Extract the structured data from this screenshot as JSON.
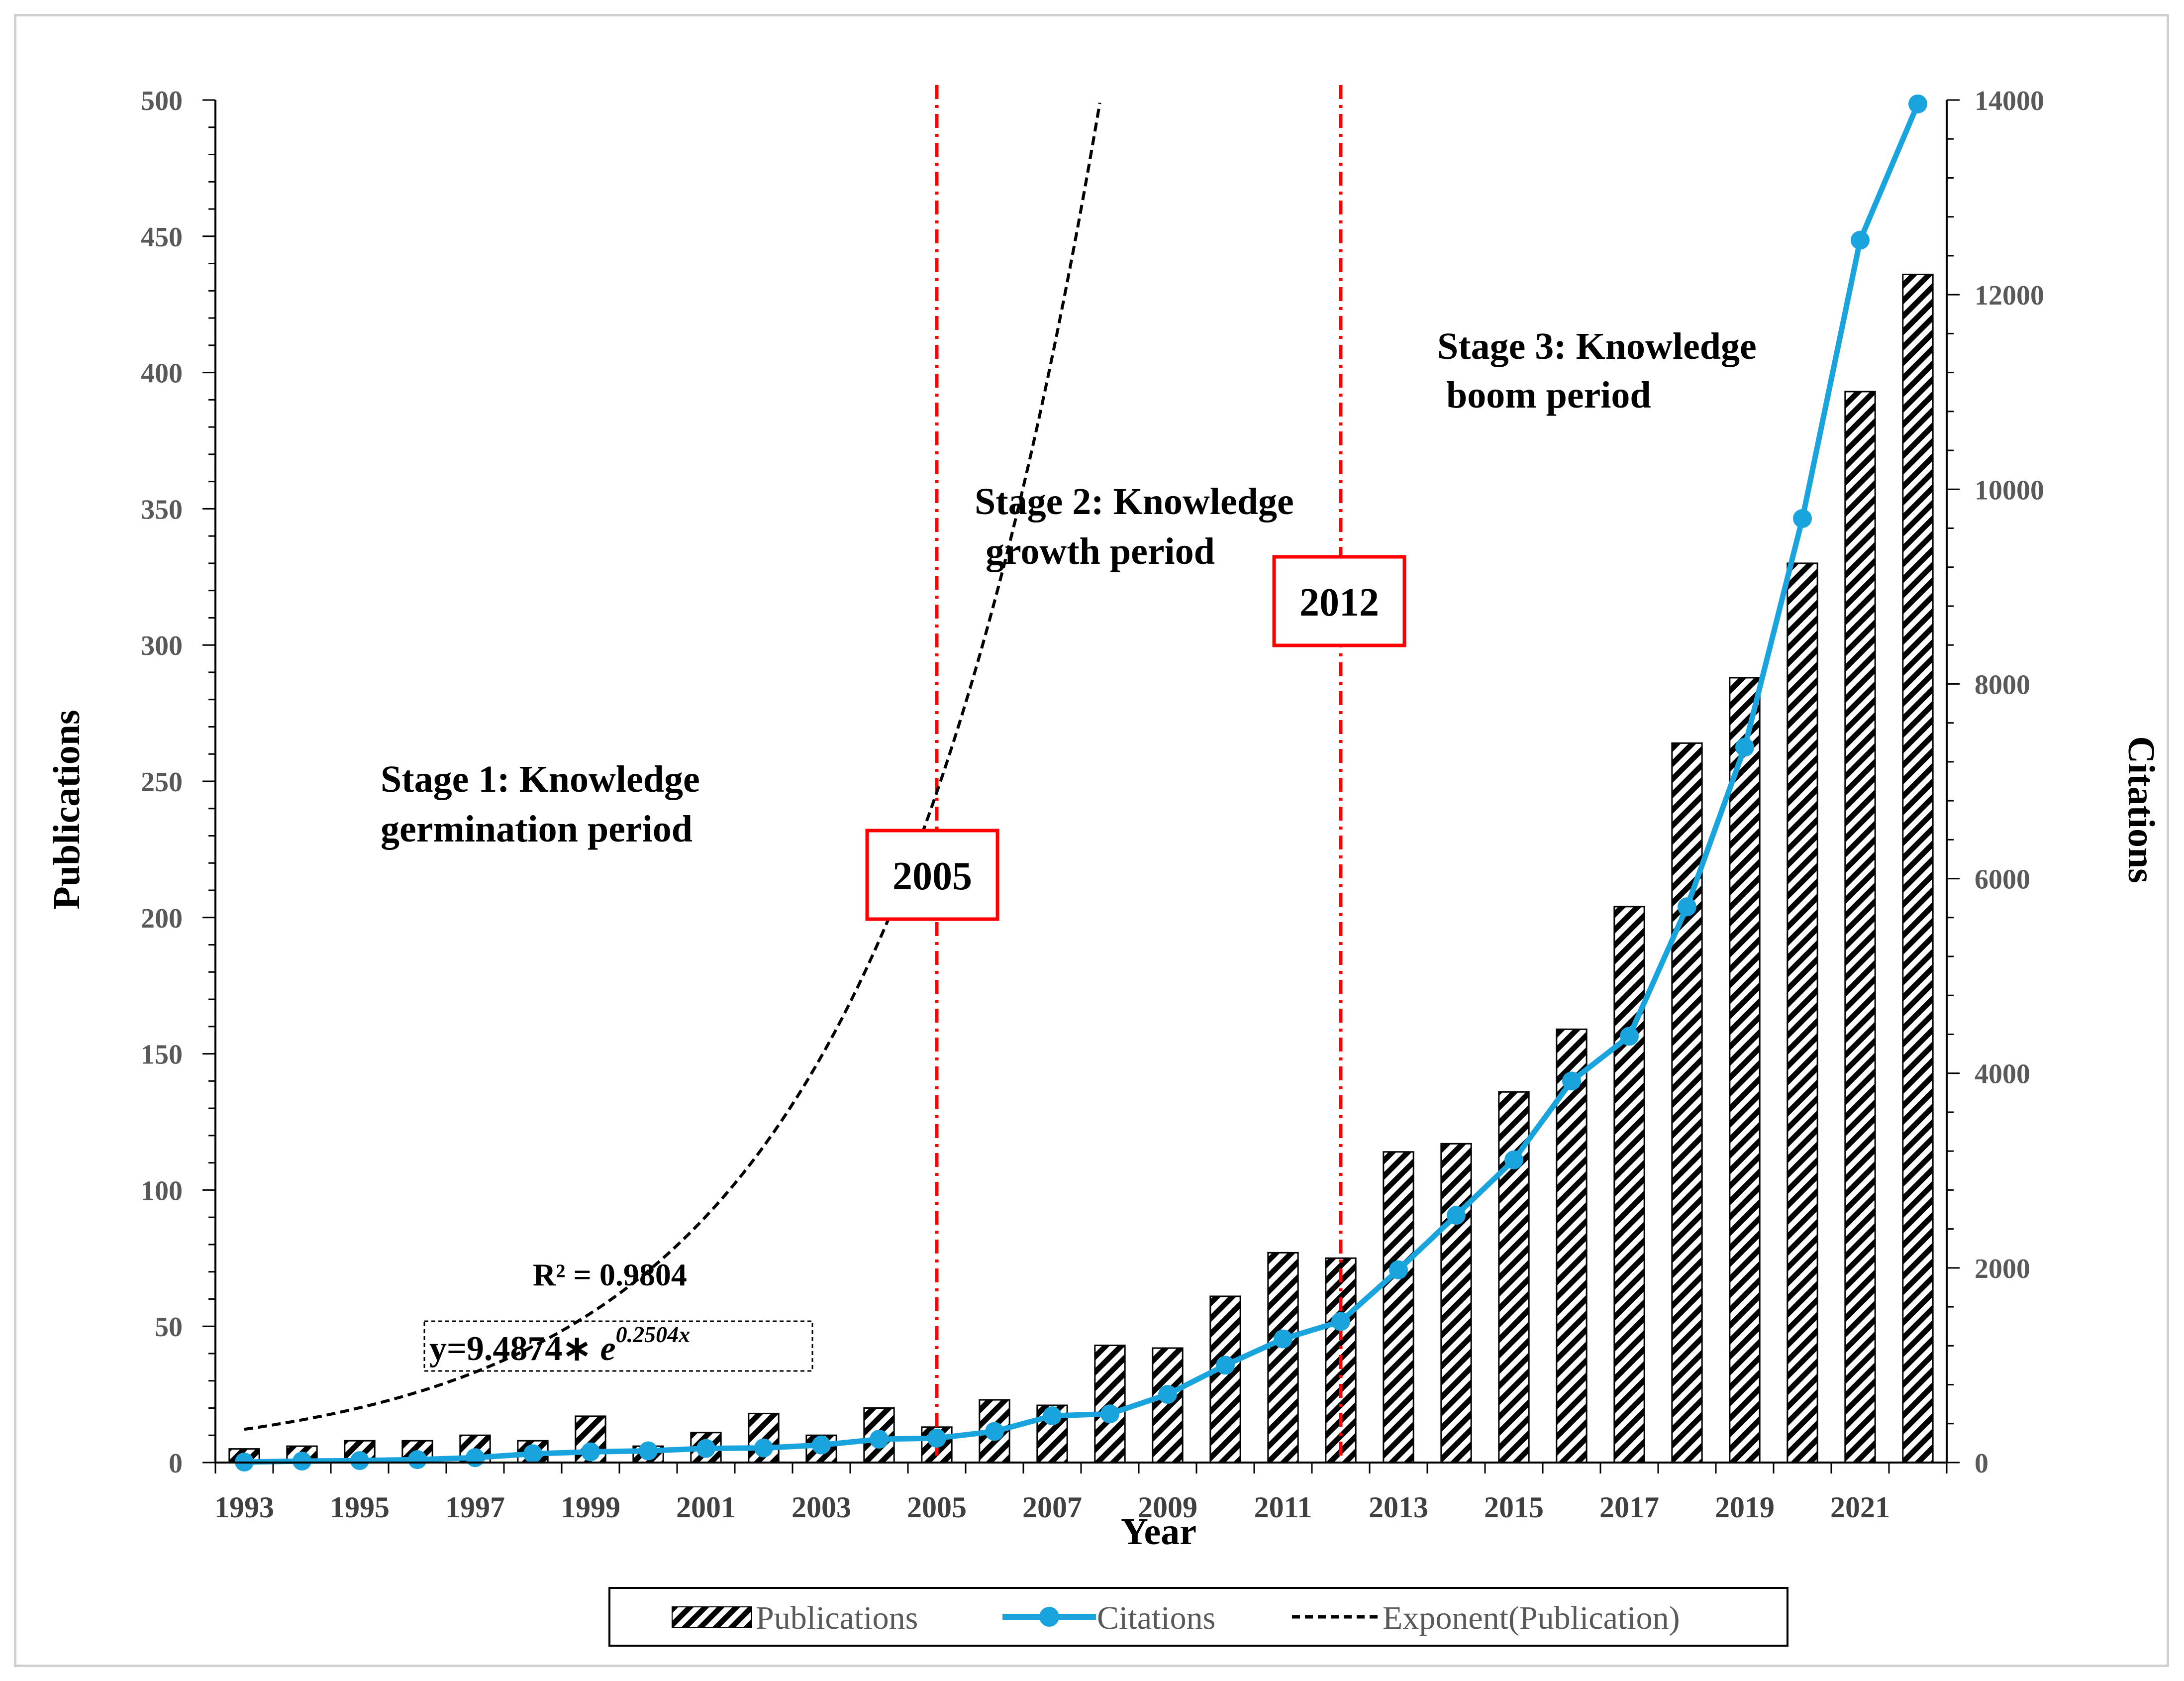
{
  "chart_data": {
    "type": "bar",
    "xlabel": "Year",
    "ylabel": "Publications",
    "y2label": "Citations",
    "ylim": [
      0,
      500
    ],
    "y2lim": [
      0,
      14000
    ],
    "y_ticks": [
      "0",
      "50",
      "100",
      "150",
      "200",
      "250",
      "300",
      "350",
      "400",
      "450",
      "500"
    ],
    "y2_ticks": [
      "0",
      "2000",
      "4000",
      "6000",
      "8000",
      "10000",
      "12000",
      "14000"
    ],
    "x_tick_labels": [
      "1993",
      "1995",
      "1997",
      "1999",
      "2001",
      "2003",
      "2005",
      "2007",
      "2009",
      "2011",
      "2013",
      "2015",
      "2017",
      "2019",
      "2021"
    ],
    "categories": [
      "1993",
      "1994",
      "1995",
      "1996",
      "1997",
      "1998",
      "1999",
      "2000",
      "2001",
      "2002",
      "2003",
      "2004",
      "2005",
      "2006",
      "2007",
      "2008",
      "2009",
      "2010",
      "2011",
      "2012",
      "2013",
      "2014",
      "2015",
      "2016",
      "2017",
      "2018",
      "2019",
      "2020",
      "2021",
      "2022"
    ],
    "series": [
      {
        "name": "Publications",
        "type": "bar",
        "axis": "left",
        "pattern": "diagonal-hatch",
        "values": [
          5,
          6,
          8,
          8,
          10,
          8,
          17,
          6,
          11,
          18,
          10,
          20,
          13,
          23,
          21,
          43,
          42,
          61,
          77,
          75,
          114,
          117,
          136,
          159,
          204,
          264,
          288,
          330,
          393,
          436
        ]
      },
      {
        "name": "Citations",
        "type": "line",
        "axis": "right",
        "color": "#1aa4dd",
        "marker": "circle",
        "values": [
          5,
          15,
          20,
          30,
          50,
          90,
          110,
          120,
          145,
          150,
          180,
          240,
          250,
          320,
          480,
          500,
          700,
          1000,
          1270,
          1450,
          1980,
          2540,
          3110,
          3920,
          4380,
          5710,
          7350,
          9700,
          12560,
          13960
        ]
      },
      {
        "name": "Exponent(Publication)",
        "type": "trendline",
        "axis": "left",
        "style": "dashed",
        "color": "#000000",
        "equation_coefficients": {
          "a": 9.4874,
          "b": 0.2504
        }
      }
    ],
    "trendline": {
      "r_squared_label": "R² = 0.9804",
      "equation_prefix": "y=9.4874∗ ",
      "equation_base": "e",
      "equation_exponent": "0.2504x"
    },
    "vertical_markers": [
      {
        "year": "2005",
        "label": "2005",
        "color": "#ff0000"
      },
      {
        "year": "2012",
        "label": "2012",
        "color": "#ff0000"
      }
    ],
    "stage_annotations": [
      {
        "line1": "Stage 1: Knowledge",
        "line2": "germination period"
      },
      {
        "line1": "Stage 2: Knowledge",
        "line2": "growth period"
      },
      {
        "line1": "Stage 3: Knowledge",
        "line2": "boom period"
      }
    ],
    "legend": {
      "position": "bottom",
      "entries": [
        "Publications",
        "Citations",
        "Exponent(Publication)"
      ]
    },
    "grid": false
  }
}
